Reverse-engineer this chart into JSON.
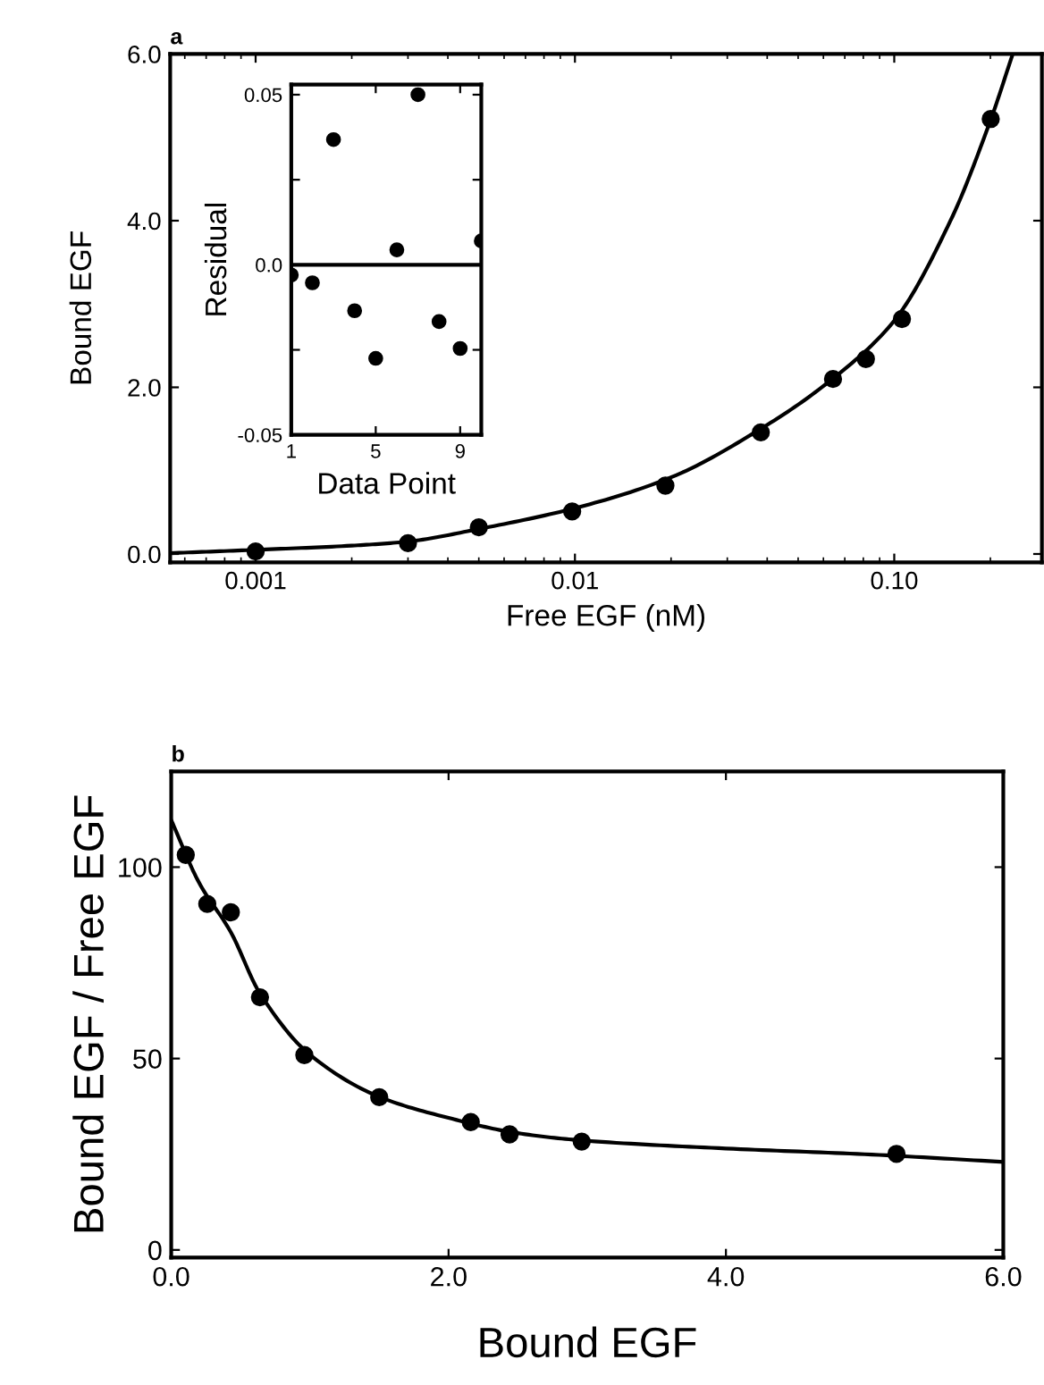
{
  "chart_data": [
    {
      "type": "scatter",
      "title": "a",
      "xlabel": "Free EGF (nM)",
      "ylabel": "Bound EGF",
      "log": "x",
      "xlim": [
        0.00054,
        0.29
      ],
      "ylim": [
        -0.1,
        6.0
      ],
      "xticks": [
        0.001,
        0.01,
        {
          "value": 0.1,
          "label": "0.10"
        }
      ],
      "yticks": [
        {
          "value": 0,
          "label": "0.0"
        },
        {
          "value": 2,
          "label": "2.0"
        },
        {
          "value": 4,
          "label": "4.0"
        },
        {
          "value": 6,
          "label": "6.0"
        }
      ],
      "grid": false,
      "legend": false,
      "series": [
        {
          "color": "#000000",
          "marker": "circle",
          "x": [
            0.001,
            0.003,
            0.005,
            0.0098,
            0.0192,
            0.0382,
            0.0643,
            0.0815,
            0.1057,
            0.2005
          ],
          "values": [
            0.03,
            0.13,
            0.32,
            0.51,
            0.82,
            1.46,
            2.1,
            2.34,
            2.82,
            5.22
          ]
        },
        {
          "type": "line",
          "color": "#000000",
          "marker": "none",
          "line_style": "solid",
          "x": [
            0.00054,
            0.001,
            0.002,
            0.003,
            0.005,
            0.01,
            0.02,
            0.04,
            0.064,
            0.1,
            0.15,
            0.2,
            0.235
          ],
          "values": [
            0.01,
            0.05,
            0.1,
            0.15,
            0.3,
            0.55,
            0.92,
            1.55,
            2.1,
            2.8,
            4.0,
            5.2,
            6.0
          ]
        }
      ]
    },
    {
      "type": "scatter",
      "xlabel": "Data Point",
      "ylabel": "Residual",
      "xlim": [
        1,
        10
      ],
      "ylim": [
        -0.05,
        0.053
      ],
      "xticks": [
        1,
        5,
        9
      ],
      "yticks": [
        {
          "value": -0.05,
          "label": "-0.05"
        },
        {
          "value": -0.025,
          "label": null
        },
        {
          "value": 0,
          "label": "0.0"
        },
        {
          "value": 0.025,
          "label": null
        },
        0.05
      ],
      "grid": false,
      "legend": false,
      "ref_lines": [
        {
          "axis": "y",
          "value": 0,
          "label": null,
          "color": "#000000",
          "line_style": "solid"
        }
      ],
      "series": [
        {
          "color": "#000000",
          "marker": "circle",
          "x": [
            1,
            2,
            3,
            4,
            5,
            6,
            7,
            8,
            9,
            10
          ],
          "values": [
            -0.003,
            -0.0053,
            0.0368,
            -0.0135,
            -0.0275,
            0.0044,
            0.05,
            -0.0167,
            -0.0246,
            0.007
          ]
        }
      ]
    },
    {
      "type": "scatter",
      "title": "b",
      "xlabel": "Bound EGF",
      "ylabel": "Bound EGF / Free EGF",
      "xlim": [
        0,
        6.0
      ],
      "ylim": [
        -2,
        125
      ],
      "xticks": [
        {
          "value": 0,
          "label": "0.0"
        },
        {
          "value": 2,
          "label": "2.0"
        },
        {
          "value": 4,
          "label": "4.0"
        },
        {
          "value": 6,
          "label": "6.0"
        }
      ],
      "yticks": [
        0,
        50,
        100
      ],
      "grid": false,
      "legend": false,
      "series": [
        {
          "color": "#000000",
          "marker": "circle",
          "x": [
            0.105,
            0.26,
            0.43,
            0.64,
            0.96,
            1.5,
            2.16,
            2.44,
            2.96,
            5.23
          ],
          "values": [
            103.2,
            90.4,
            88.2,
            66.0,
            50.9,
            39.9,
            33.4,
            30.2,
            28.3,
            25.1
          ]
        },
        {
          "type": "line",
          "color": "#000000",
          "marker": "none",
          "line_style": "solid",
          "x": [
            0,
            0.2,
            0.43,
            0.64,
            1.0,
            1.5,
            2.0,
            2.5,
            3.0,
            4.0,
            5.0,
            6.0
          ],
          "values": [
            112.3,
            96,
            83,
            67,
            51,
            40,
            34.5,
            30.5,
            28.5,
            26.5,
            25,
            23
          ]
        }
      ]
    }
  ]
}
